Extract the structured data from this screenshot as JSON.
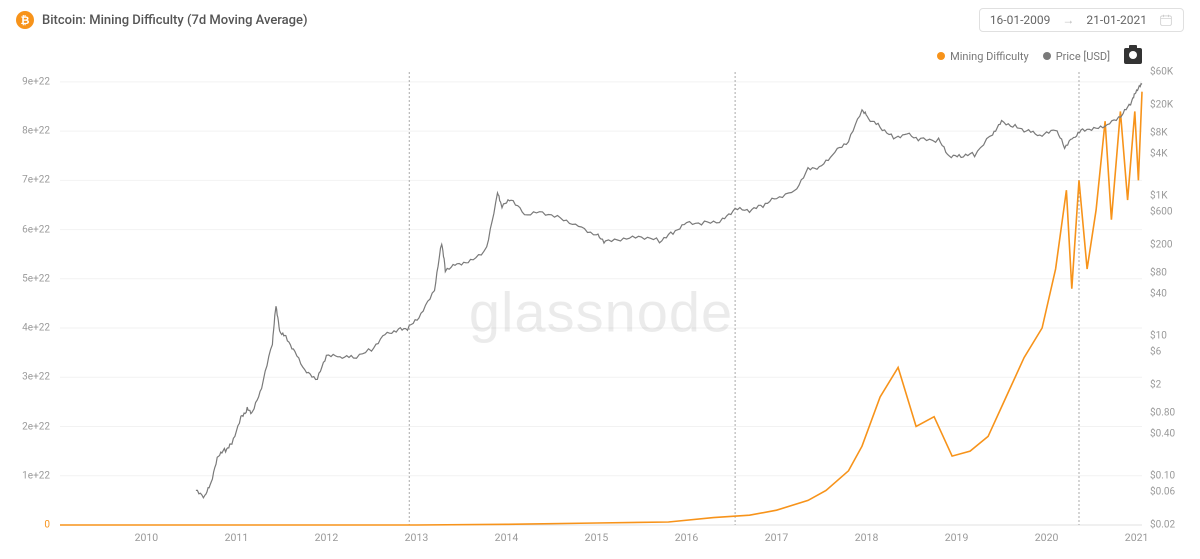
{
  "header": {
    "title": "Bitcoin: Mining Difficulty (7d Moving Average)",
    "icon_label": "₿",
    "date_from": "16-01-2009",
    "date_to": "21-01-2021"
  },
  "watermark": "glassnode",
  "legend": {
    "items": [
      {
        "label": "Mining Difficulty",
        "color": "#f7931a"
      },
      {
        "label": "Price [USD]",
        "color": "#7a7a7a"
      }
    ]
  },
  "chart": {
    "type": "dual-axis-line",
    "background_color": "#ffffff",
    "grid_color": "#f2f2f2",
    "axis_color": "#e0e0e0",
    "x": {
      "min_year": 2009.04,
      "max_year": 2021.06,
      "tick_years": [
        2010,
        2011,
        2012,
        2013,
        2014,
        2015,
        2016,
        2017,
        2018,
        2019,
        2020,
        2021
      ],
      "vertical_dashed_at": [
        2012.92,
        2016.54,
        2020.36
      ]
    },
    "y_left": {
      "label": "Difficulty",
      "scale": "linear",
      "min": 0,
      "max": 9.2e+22,
      "ticks": [
        {
          "v": 0,
          "label": "0"
        },
        {
          "v": 1e+22,
          "label": "1e+22"
        },
        {
          "v": 2e+22,
          "label": "2e+22"
        },
        {
          "v": 3e+22,
          "label": "3e+22"
        },
        {
          "v": 4e+22,
          "label": "4e+22"
        },
        {
          "v": 5e+22,
          "label": "5e+22"
        },
        {
          "v": 6e+22,
          "label": "6e+22"
        },
        {
          "v": 7e+22,
          "label": "7e+22"
        },
        {
          "v": 8e+22,
          "label": "8e+22"
        },
        {
          "v": 9e+22,
          "label": "9e+22"
        }
      ]
    },
    "y_right": {
      "label": "Price [USD]",
      "scale": "log",
      "min": 0.02,
      "max": 60000,
      "ticks": [
        {
          "v": 0.02,
          "label": "$0.02"
        },
        {
          "v": 0.06,
          "label": "$0.06"
        },
        {
          "v": 0.1,
          "label": "$0.10"
        },
        {
          "v": 0.4,
          "label": "$0.40"
        },
        {
          "v": 0.8,
          "label": "$0.80"
        },
        {
          "v": 2,
          "label": "$2"
        },
        {
          "v": 6,
          "label": "$6"
        },
        {
          "v": 10,
          "label": "$10"
        },
        {
          "v": 40,
          "label": "$40"
        },
        {
          "v": 80,
          "label": "$80"
        },
        {
          "v": 200,
          "label": "$200"
        },
        {
          "v": 600,
          "label": "$600"
        },
        {
          "v": 1000,
          "label": "$1K"
        },
        {
          "v": 4000,
          "label": "$4K"
        },
        {
          "v": 8000,
          "label": "$8K"
        },
        {
          "v": 20000,
          "label": "$20K"
        },
        {
          "v": 60000,
          "label": "$60K"
        }
      ]
    },
    "series": {
      "difficulty": {
        "color": "#f7931a",
        "line_width": 1.6,
        "points": [
          [
            2009.04,
            0
          ],
          [
            2012.0,
            1.1e+18
          ],
          [
            2013.0,
            3e+18
          ],
          [
            2014.0,
            1.5e+20
          ],
          [
            2015.0,
            4e+20
          ],
          [
            2015.8,
            6e+20
          ],
          [
            2016.3,
            1.5e+21
          ],
          [
            2016.7,
            2e+21
          ],
          [
            2017.0,
            3e+21
          ],
          [
            2017.35,
            5e+21
          ],
          [
            2017.55,
            7e+21
          ],
          [
            2017.8,
            1.1e+22
          ],
          [
            2017.95,
            1.6e+22
          ],
          [
            2018.15,
            2.6e+22
          ],
          [
            2018.35,
            3.2e+22
          ],
          [
            2018.55,
            2e+22
          ],
          [
            2018.75,
            2.2e+22
          ],
          [
            2018.95,
            1.4e+22
          ],
          [
            2019.15,
            1.5e+22
          ],
          [
            2019.35,
            1.8e+22
          ],
          [
            2019.55,
            2.6e+22
          ],
          [
            2019.75,
            3.4e+22
          ],
          [
            2019.95,
            4e+22
          ],
          [
            2020.1,
            5.2e+22
          ],
          [
            2020.22,
            6.8e+22
          ],
          [
            2020.28,
            4.8e+22
          ],
          [
            2020.36,
            7e+22
          ],
          [
            2020.45,
            5.2e+22
          ],
          [
            2020.55,
            6.4e+22
          ],
          [
            2020.65,
            8.2e+22
          ],
          [
            2020.72,
            6.2e+22
          ],
          [
            2020.82,
            8.4e+22
          ],
          [
            2020.9,
            6.6e+22
          ],
          [
            2020.98,
            8.4e+22
          ],
          [
            2021.02,
            7e+22
          ],
          [
            2021.06,
            8.8e+22
          ]
        ]
      },
      "price": {
        "color": "#7a7a7a",
        "line_width": 1.2,
        "points": [
          [
            2010.55,
            0.06
          ],
          [
            2010.65,
            0.05
          ],
          [
            2010.72,
            0.08
          ],
          [
            2010.8,
            0.2
          ],
          [
            2010.88,
            0.24
          ],
          [
            2010.95,
            0.3
          ],
          [
            2011.05,
            0.7
          ],
          [
            2011.12,
            0.9
          ],
          [
            2011.18,
            0.8
          ],
          [
            2011.28,
            1.8
          ],
          [
            2011.4,
            8.0
          ],
          [
            2011.44,
            28.0
          ],
          [
            2011.48,
            12.0
          ],
          [
            2011.55,
            10.0
          ],
          [
            2011.65,
            6.0
          ],
          [
            2011.78,
            3.0
          ],
          [
            2011.9,
            2.4
          ],
          [
            2012.0,
            5.2
          ],
          [
            2012.15,
            5.0
          ],
          [
            2012.3,
            5.0
          ],
          [
            2012.5,
            6.5
          ],
          [
            2012.65,
            11.0
          ],
          [
            2012.8,
            12.5
          ],
          [
            2012.92,
            13.3
          ],
          [
            2013.05,
            20.0
          ],
          [
            2013.2,
            45.0
          ],
          [
            2013.28,
            220.0
          ],
          [
            2013.32,
            90.0
          ],
          [
            2013.45,
            110.0
          ],
          [
            2013.6,
            120.0
          ],
          [
            2013.78,
            180.0
          ],
          [
            2013.9,
            1100.0
          ],
          [
            2013.95,
            700.0
          ],
          [
            2014.05,
            900.0
          ],
          [
            2014.2,
            550.0
          ],
          [
            2014.4,
            600.0
          ],
          [
            2014.6,
            500.0
          ],
          [
            2014.8,
            380.0
          ],
          [
            2015.0,
            280.0
          ],
          [
            2015.1,
            220.0
          ],
          [
            2015.3,
            240.0
          ],
          [
            2015.5,
            260.0
          ],
          [
            2015.7,
            230.0
          ],
          [
            2015.85,
            310.0
          ],
          [
            2016.0,
            430.0
          ],
          [
            2016.2,
            420.0
          ],
          [
            2016.4,
            450.0
          ],
          [
            2016.54,
            650.0
          ],
          [
            2016.7,
            610.0
          ],
          [
            2016.85,
            740.0
          ],
          [
            2017.0,
            960.0
          ],
          [
            2017.2,
            1200.0
          ],
          [
            2017.35,
            2500.0
          ],
          [
            2017.5,
            2700.0
          ],
          [
            2017.65,
            4300.0
          ],
          [
            2017.8,
            6000.0
          ],
          [
            2017.95,
            17000.0
          ],
          [
            2018.02,
            13000.0
          ],
          [
            2018.15,
            10000.0
          ],
          [
            2018.3,
            7000.0
          ],
          [
            2018.45,
            8000.0
          ],
          [
            2018.6,
            6500.0
          ],
          [
            2018.8,
            6300.0
          ],
          [
            2018.92,
            3600.0
          ],
          [
            2019.05,
            3700.0
          ],
          [
            2019.2,
            4000.0
          ],
          [
            2019.4,
            8000.0
          ],
          [
            2019.5,
            12000.0
          ],
          [
            2019.65,
            10000.0
          ],
          [
            2019.8,
            8500.0
          ],
          [
            2019.95,
            7200.0
          ],
          [
            2020.1,
            9000.0
          ],
          [
            2020.2,
            5000.0
          ],
          [
            2020.3,
            7000.0
          ],
          [
            2020.4,
            9200.0
          ],
          [
            2020.55,
            9500.0
          ],
          [
            2020.7,
            11000.0
          ],
          [
            2020.85,
            15000.0
          ],
          [
            2020.95,
            23000.0
          ],
          [
            2021.0,
            32000.0
          ],
          [
            2021.06,
            40000.0
          ]
        ]
      }
    }
  },
  "fontsize": {
    "title": 13,
    "axis": 10,
    "legend": 11
  }
}
